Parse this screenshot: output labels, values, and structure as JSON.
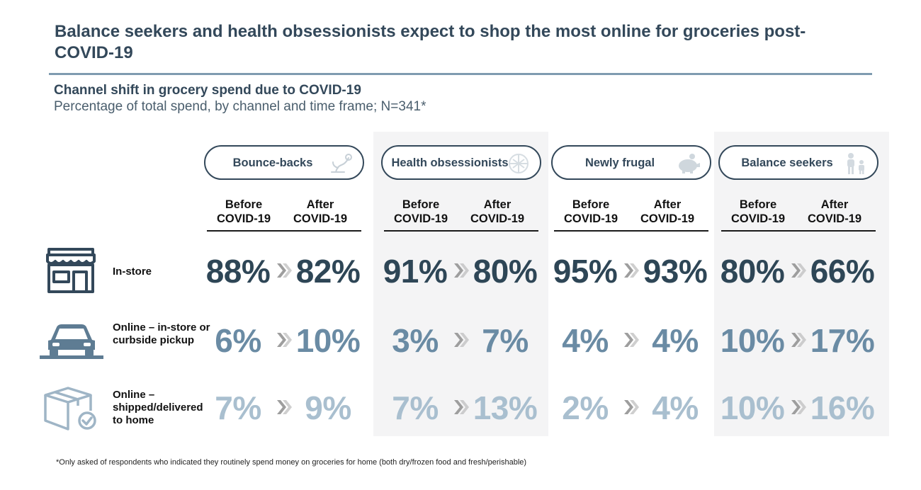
{
  "title": "Balance seekers and health obsessionists expect to shop the most online for groceries post-COVID-19",
  "subtitle": "Channel shift in grocery spend due to COVID-19",
  "subsubtitle": "Percentage of total spend, by channel and time frame; N=341*",
  "footnote": "*Only asked of respondents who indicated they routinely spend money on groceries for home (both dry/frozen food and fresh/perishable)",
  "column_headers": {
    "before": "Before COVID-19",
    "after": "After COVID-19"
  },
  "colors": {
    "in_store": "#2e4656",
    "pickup": "#6a8ba4",
    "delivered": "#a9bfcf",
    "arrow": "#bfbfbf",
    "shade": "#f4f4f5"
  },
  "chart_data": {
    "type": "table",
    "title": "Channel shift in grocery spend due to COVID-19",
    "unit": "%",
    "segments": [
      {
        "name": "Bounce-backs",
        "icon": "plant-icon",
        "shaded": false
      },
      {
        "name": "Health obsessionists",
        "icon": "wellness-icon",
        "shaded": true
      },
      {
        "name": "Newly frugal",
        "icon": "piggy-bank-icon",
        "shaded": false
      },
      {
        "name": "Balance seekers",
        "icon": "family-icon",
        "shaded": true
      }
    ],
    "channels": [
      {
        "name": "In-store",
        "icon": "storefront-icon",
        "before": [
          "88%",
          "91%",
          "95%",
          "80%"
        ],
        "after": [
          "82%",
          "80%",
          "93%",
          "66%"
        ]
      },
      {
        "name": "Online – in-store or curbside pickup",
        "icon": "car-pickup-icon",
        "before": [
          "6%",
          "3%",
          "4%",
          "10%"
        ],
        "after": [
          "10%",
          "7%",
          "4%",
          "17%"
        ]
      },
      {
        "name": "Online – shipped/delivered to home",
        "icon": "box-delivery-icon",
        "before": [
          "7%",
          "7%",
          "2%",
          "10%"
        ],
        "after": [
          "9%",
          "13%",
          "4%",
          "16%"
        ]
      }
    ]
  }
}
